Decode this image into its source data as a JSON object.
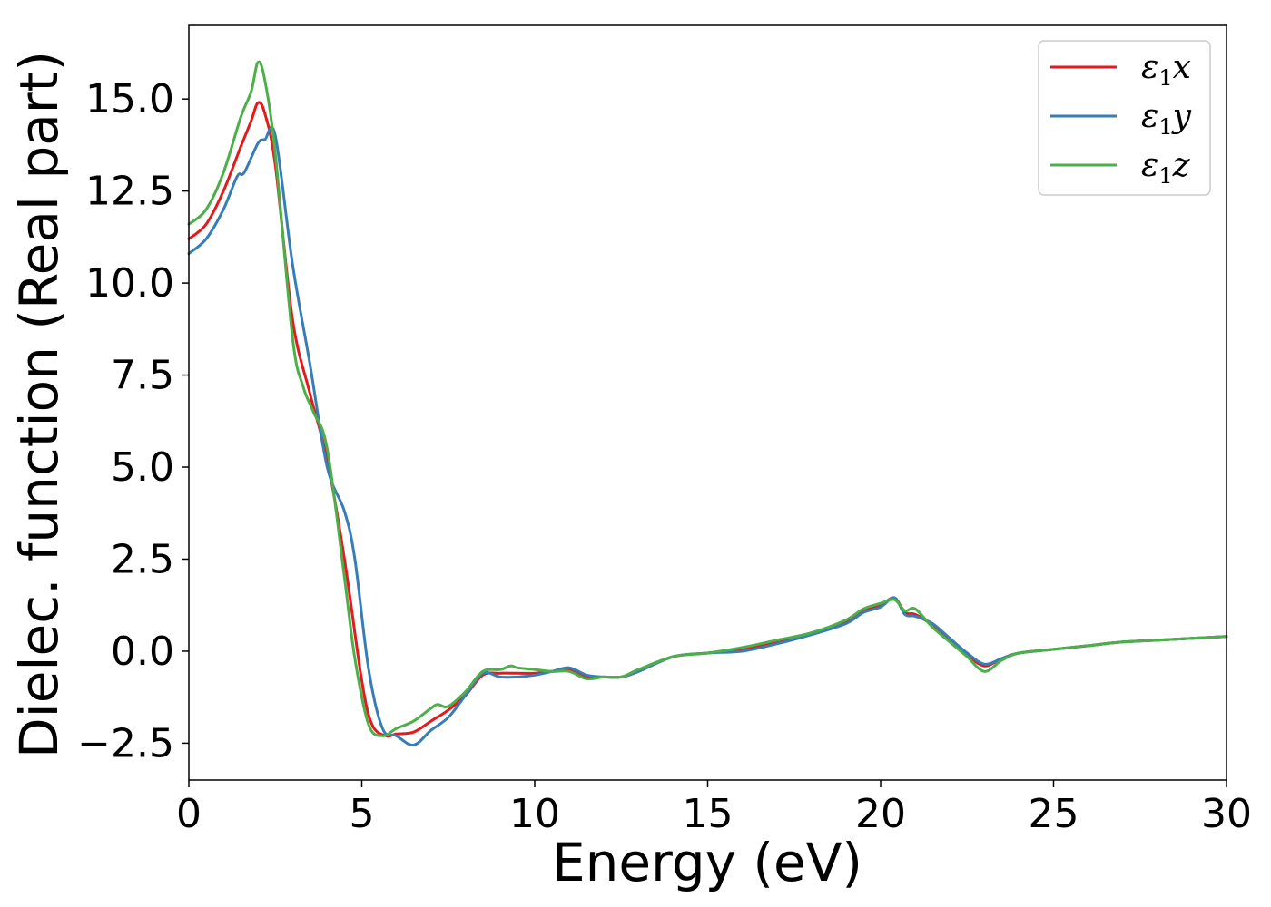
{
  "chart_data": {
    "type": "line",
    "title": "",
    "xlabel": "Energy (eV)",
    "ylabel": "Dielec. function (Real part)",
    "xlim": [
      0,
      30
    ],
    "ylim": [
      -3.5,
      17
    ],
    "xticks": [
      0,
      5,
      10,
      15,
      20,
      25,
      30
    ],
    "xtick_labels": [
      "0",
      "5",
      "10",
      "15",
      "20",
      "25",
      "30"
    ],
    "yticks": [
      -2.5,
      0,
      2.5,
      5,
      7.5,
      10,
      12.5,
      15
    ],
    "ytick_labels": [
      "−2.5",
      "0.0",
      "2.5",
      "5.0",
      "7.5",
      "10.0",
      "12.5",
      "15.0"
    ],
    "grid": false,
    "legend_position": "top-right",
    "series": [
      {
        "name": "ε₁x",
        "legend_base": "ε",
        "legend_sub": "1",
        "legend_var": "x",
        "color": "#e41a1c",
        "x": [
          0,
          0.5,
          1,
          1.5,
          1.8,
          2,
          2.2,
          2.5,
          3,
          3.5,
          4,
          4.5,
          5,
          5.3,
          5.7,
          6,
          6.5,
          7,
          7.5,
          8,
          8.5,
          9,
          9.5,
          10,
          10.5,
          11,
          11.5,
          12,
          12.5,
          13,
          14,
          15,
          16,
          17,
          18,
          19,
          19.5,
          20,
          20.4,
          20.7,
          21,
          21.5,
          22,
          22.5,
          23,
          23.5,
          24,
          25,
          26,
          27,
          28,
          29,
          30
        ],
        "y": [
          11.2,
          11.6,
          12.5,
          13.7,
          14.4,
          14.9,
          14.6,
          13.2,
          9.0,
          7.0,
          5.2,
          2.5,
          -0.8,
          -2.0,
          -2.3,
          -2.25,
          -2.2,
          -1.9,
          -1.6,
          -1.2,
          -0.65,
          -0.6,
          -0.6,
          -0.6,
          -0.55,
          -0.5,
          -0.7,
          -0.7,
          -0.7,
          -0.55,
          -0.15,
          -0.05,
          0.05,
          0.25,
          0.5,
          0.8,
          1.1,
          1.25,
          1.45,
          1.05,
          1.0,
          0.7,
          0.3,
          -0.1,
          -0.4,
          -0.2,
          -0.05,
          0.05,
          0.15,
          0.25,
          0.3,
          0.35,
          0.4
        ]
      },
      {
        "name": "ε₁y",
        "legend_base": "ε",
        "legend_sub": "1",
        "legend_var": "y",
        "color": "#377eb8",
        "x": [
          0,
          0.5,
          1,
          1.4,
          1.6,
          2,
          2.2,
          2.5,
          3,
          3.5,
          4,
          4.5,
          4.8,
          5.2,
          5.6,
          6,
          6.5,
          7,
          7.5,
          8,
          8.5,
          9,
          9.5,
          10,
          10.5,
          11,
          11.5,
          12,
          12.5,
          13,
          14,
          15,
          16,
          17,
          18,
          19,
          19.5,
          20,
          20.4,
          20.7,
          21,
          21.5,
          22,
          22.5,
          23,
          23.5,
          24,
          25,
          26,
          27,
          28,
          29,
          30
        ],
        "y": [
          10.8,
          11.2,
          12.0,
          12.9,
          13.0,
          13.8,
          13.9,
          14.0,
          10.5,
          7.8,
          5.0,
          3.8,
          2.5,
          -0.5,
          -2.1,
          -2.3,
          -2.55,
          -2.15,
          -1.8,
          -1.2,
          -0.6,
          -0.7,
          -0.7,
          -0.65,
          -0.55,
          -0.45,
          -0.65,
          -0.7,
          -0.7,
          -0.55,
          -0.15,
          -0.05,
          0.0,
          0.2,
          0.45,
          0.75,
          1.05,
          1.2,
          1.45,
          1.0,
          0.95,
          0.75,
          0.35,
          -0.05,
          -0.35,
          -0.2,
          -0.05,
          0.05,
          0.15,
          0.25,
          0.3,
          0.35,
          0.4
        ]
      },
      {
        "name": "ε₁z",
        "legend_base": "ε",
        "legend_sub": "1",
        "legend_var": "z",
        "color": "#4daf4a",
        "x": [
          0,
          0.5,
          1,
          1.5,
          1.8,
          2,
          2.2,
          2.5,
          3,
          3.3,
          3.6,
          4,
          4.5,
          4.8,
          5.2,
          5.6,
          6,
          6.5,
          7,
          7.2,
          7.5,
          8,
          8.5,
          9,
          9.3,
          9.5,
          10,
          10.5,
          11,
          11.5,
          12,
          12.5,
          13,
          14,
          15,
          16,
          17,
          18,
          19,
          19.5,
          20,
          20.4,
          20.7,
          21,
          21.5,
          22,
          22.5,
          23,
          23.5,
          24,
          25,
          26,
          27,
          28,
          29,
          30
        ],
        "y": [
          11.6,
          12.0,
          13.0,
          14.5,
          15.2,
          16.0,
          15.5,
          13.5,
          8.5,
          7.2,
          6.5,
          5.5,
          2.0,
          -0.2,
          -2.0,
          -2.3,
          -2.1,
          -1.9,
          -1.55,
          -1.45,
          -1.5,
          -1.1,
          -0.55,
          -0.5,
          -0.4,
          -0.45,
          -0.5,
          -0.55,
          -0.55,
          -0.75,
          -0.7,
          -0.7,
          -0.5,
          -0.15,
          -0.05,
          0.1,
          0.3,
          0.5,
          0.85,
          1.15,
          1.3,
          1.4,
          1.1,
          1.15,
          0.65,
          0.25,
          -0.15,
          -0.55,
          -0.25,
          -0.05,
          0.05,
          0.15,
          0.25,
          0.3,
          0.35,
          0.4
        ]
      }
    ]
  }
}
